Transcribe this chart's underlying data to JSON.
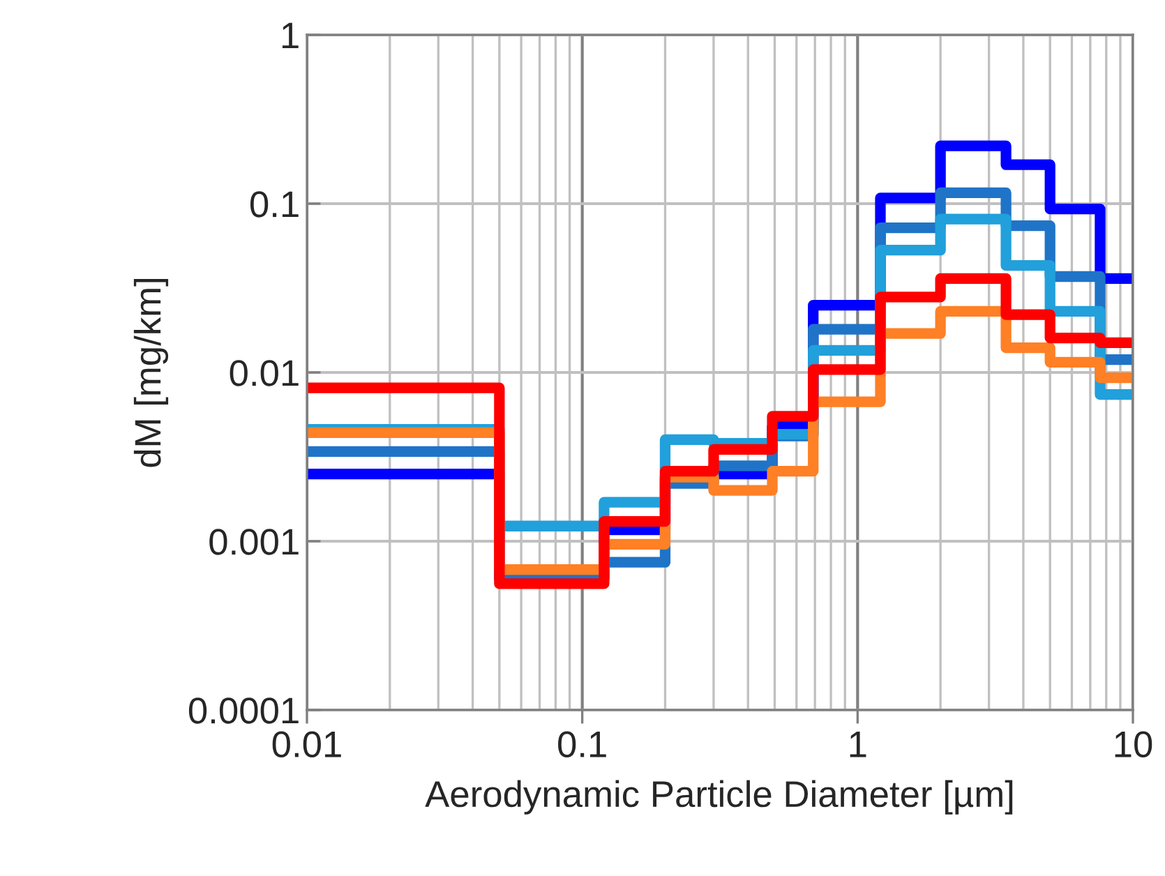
{
  "chart_data": {
    "type": "histogram",
    "xlabel": "Aerodynamic Particle Diameter [µm]",
    "ylabel": "dM [mg/km]",
    "log": "xy",
    "grid": true,
    "legend": false,
    "xlim": [
      0.01,
      10
    ],
    "ylim": [
      0.0001,
      1
    ],
    "xticks": [
      0.01,
      0.1,
      1,
      10
    ],
    "yticks": [
      0.0001,
      0.001,
      0.01,
      0.1,
      1
    ],
    "bins": [
      0.01,
      0.05,
      0.12,
      0.2,
      0.3,
      0.49,
      0.69,
      1.21,
      2.0,
      3.46,
      5.0,
      7.6,
      10
    ],
    "series": [
      {
        "color": "#0000ff",
        "values": [
          0.0025,
          0.00061,
          0.00117,
          0.0024,
          0.0025,
          0.0048,
          0.025,
          0.108,
          0.22,
          0.17,
          0.093,
          0.036
        ]
      },
      {
        "color": "#1f74c8",
        "values": [
          0.0034,
          0.0006,
          0.00075,
          0.0022,
          0.0028,
          0.0042,
          0.018,
          0.072,
          0.116,
          0.074,
          0.037,
          0.0119
        ]
      },
      {
        "color": "#21a0db",
        "values": [
          0.0046,
          0.00123,
          0.0017,
          0.004,
          0.0038,
          0.0043,
          0.0135,
          0.053,
          0.081,
          0.043,
          0.023,
          0.0074
        ]
      },
      {
        "color": "#ff8025",
        "values": [
          0.0044,
          0.00068,
          0.00096,
          0.0024,
          0.002,
          0.0026,
          0.0067,
          0.017,
          0.023,
          0.014,
          0.0115,
          0.0093
        ]
      },
      {
        "color": "#ff0000",
        "values": [
          0.0081,
          0.00056,
          0.00131,
          0.0026,
          0.0035,
          0.0055,
          0.0104,
          0.028,
          0.036,
          0.022,
          0.016,
          0.015
        ]
      }
    ]
  }
}
